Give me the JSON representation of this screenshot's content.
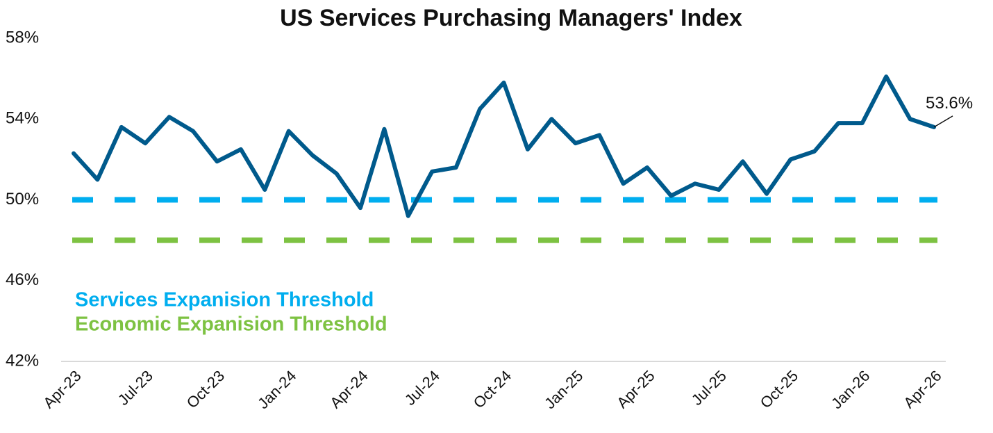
{
  "chart_data": {
    "type": "line",
    "title": "US Services Purchasing Managers' Index",
    "categories": [
      "Apr-23",
      null,
      null,
      "Jul-23",
      null,
      null,
      "Oct-23",
      null,
      null,
      "Jan-24",
      null,
      null,
      "Apr-24",
      null,
      null,
      "Jul-24",
      null,
      null,
      "Oct-24",
      null,
      null,
      "Jan-25",
      null,
      null,
      "Apr-25",
      null,
      null,
      "Jul-25",
      null,
      null,
      "Oct-25",
      null,
      null,
      "Jan-26",
      null,
      null,
      "Apr-26"
    ],
    "values": [
      52.3,
      51.0,
      53.6,
      52.8,
      54.1,
      53.4,
      51.9,
      52.5,
      50.5,
      53.4,
      52.2,
      51.3,
      49.6,
      53.5,
      49.2,
      51.4,
      51.6,
      54.5,
      55.8,
      52.5,
      54.0,
      52.8,
      53.2,
      50.8,
      51.6,
      50.2,
      50.8,
      50.5,
      51.9,
      50.3,
      52.0,
      52.4,
      53.8,
      53.8,
      56.1,
      54.0,
      53.6
    ],
    "value_labels": [
      null,
      null,
      null,
      null,
      null,
      null,
      null,
      null,
      null,
      null,
      null,
      null,
      null,
      null,
      null,
      null,
      null,
      null,
      null,
      null,
      null,
      null,
      null,
      null,
      null,
      null,
      null,
      null,
      null,
      null,
      null,
      null,
      null,
      null,
      null,
      null,
      "53.6%"
    ],
    "color": "#005a8c",
    "thresholds": [
      {
        "name": "Services Expanision Threshold",
        "value": 50,
        "color": "#00aeef"
      },
      {
        "name": "Economic Expanision Threshold",
        "value": 48,
        "color": "#7dc242"
      }
    ],
    "ylim": [
      42,
      58
    ],
    "yticks": [
      {
        "value": 42,
        "label": "42%"
      },
      {
        "value": 46,
        "label": "46%"
      },
      {
        "value": 50,
        "label": "50%"
      },
      {
        "value": 54,
        "label": "54%"
      },
      {
        "value": 58,
        "label": "58%"
      }
    ],
    "grid": false
  }
}
